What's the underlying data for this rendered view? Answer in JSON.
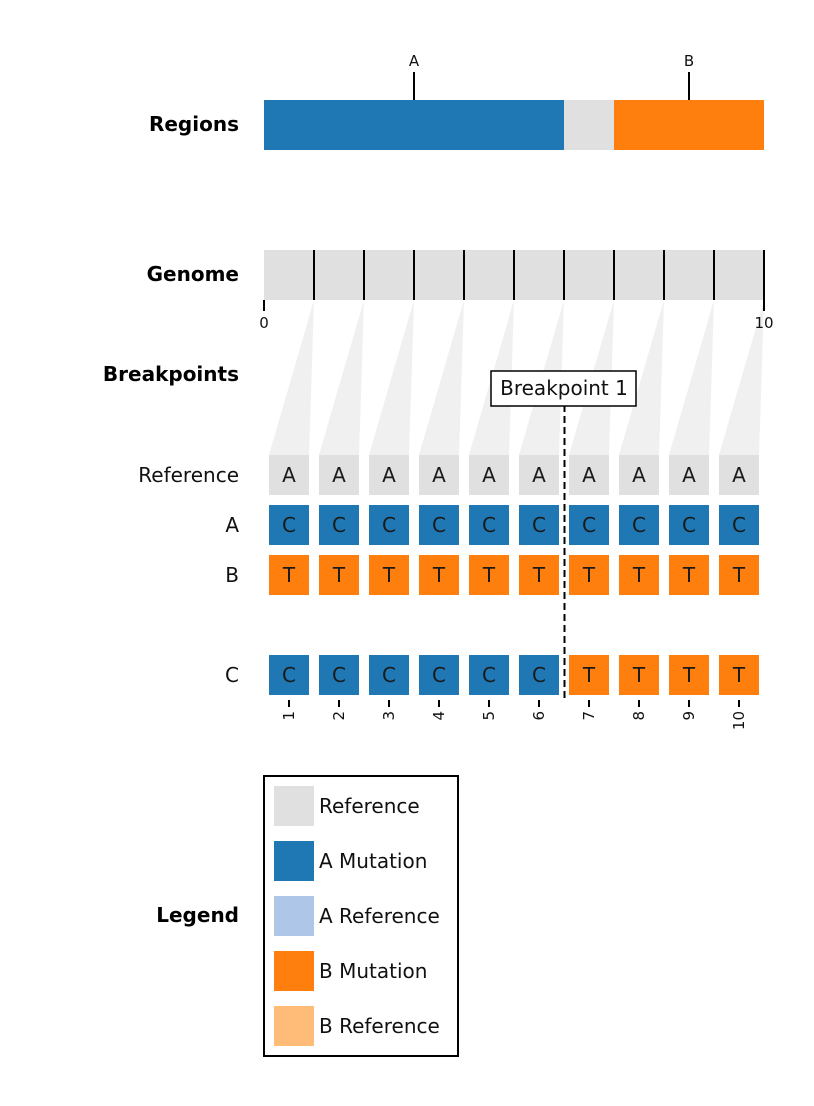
{
  "colors": {
    "reference": "#e0e0e0",
    "a_mutation": "#1f77b4",
    "a_reference": "#aec7e8",
    "b_mutation": "#ff7f0e",
    "b_reference": "#ffbb78",
    "wedge": "#f0f0f0",
    "line": "#000000"
  },
  "sections": {
    "regions": "Regions",
    "genome": "Genome",
    "breakpoints": "Breakpoints",
    "legend": "Legend"
  },
  "regions": [
    {
      "label": "A",
      "start": 0,
      "end": 6,
      "color": "a_mutation",
      "marker": 3
    },
    {
      "label": "",
      "start": 6,
      "end": 7,
      "color": "reference",
      "marker": null
    },
    {
      "label": "B",
      "start": 7,
      "end": 10,
      "color": "b_mutation",
      "marker": 8.5
    }
  ],
  "genome": {
    "length": 10,
    "axis_ticks": [
      {
        "value": 0,
        "label": "0"
      },
      {
        "value": 10,
        "label": "10"
      }
    ]
  },
  "breakpoint": {
    "label": "Breakpoint 1",
    "after_position": 6
  },
  "sequences": [
    {
      "name": "Reference",
      "bases": [
        "A",
        "A",
        "A",
        "A",
        "A",
        "A",
        "A",
        "A",
        "A",
        "A"
      ],
      "colors": [
        "reference",
        "reference",
        "reference",
        "reference",
        "reference",
        "reference",
        "reference",
        "reference",
        "reference",
        "reference"
      ],
      "gap_before": false
    },
    {
      "name": "A",
      "bases": [
        "C",
        "C",
        "C",
        "C",
        "C",
        "C",
        "C",
        "C",
        "C",
        "C"
      ],
      "colors": [
        "a_mutation",
        "a_mutation",
        "a_mutation",
        "a_mutation",
        "a_mutation",
        "a_mutation",
        "a_mutation",
        "a_mutation",
        "a_mutation",
        "a_mutation"
      ],
      "gap_before": false
    },
    {
      "name": "B",
      "bases": [
        "T",
        "T",
        "T",
        "T",
        "T",
        "T",
        "T",
        "T",
        "T",
        "T"
      ],
      "colors": [
        "b_mutation",
        "b_mutation",
        "b_mutation",
        "b_mutation",
        "b_mutation",
        "b_mutation",
        "b_mutation",
        "b_mutation",
        "b_mutation",
        "b_mutation"
      ],
      "gap_before": false
    },
    {
      "name": "C",
      "bases": [
        "C",
        "C",
        "C",
        "C",
        "C",
        "C",
        "T",
        "T",
        "T",
        "T"
      ],
      "colors": [
        "a_mutation",
        "a_mutation",
        "a_mutation",
        "a_mutation",
        "a_mutation",
        "a_mutation",
        "b_mutation",
        "b_mutation",
        "b_mutation",
        "b_mutation"
      ],
      "gap_before": true
    }
  ],
  "positions": [
    "1",
    "2",
    "3",
    "4",
    "5",
    "6",
    "7",
    "8",
    "9",
    "10"
  ],
  "legend": [
    {
      "label": "Reference",
      "color": "reference"
    },
    {
      "label": "A Mutation",
      "color": "a_mutation"
    },
    {
      "label": "A Reference",
      "color": "a_reference"
    },
    {
      "label": "B Mutation",
      "color": "b_mutation"
    },
    {
      "label": "B Reference",
      "color": "b_reference"
    }
  ]
}
